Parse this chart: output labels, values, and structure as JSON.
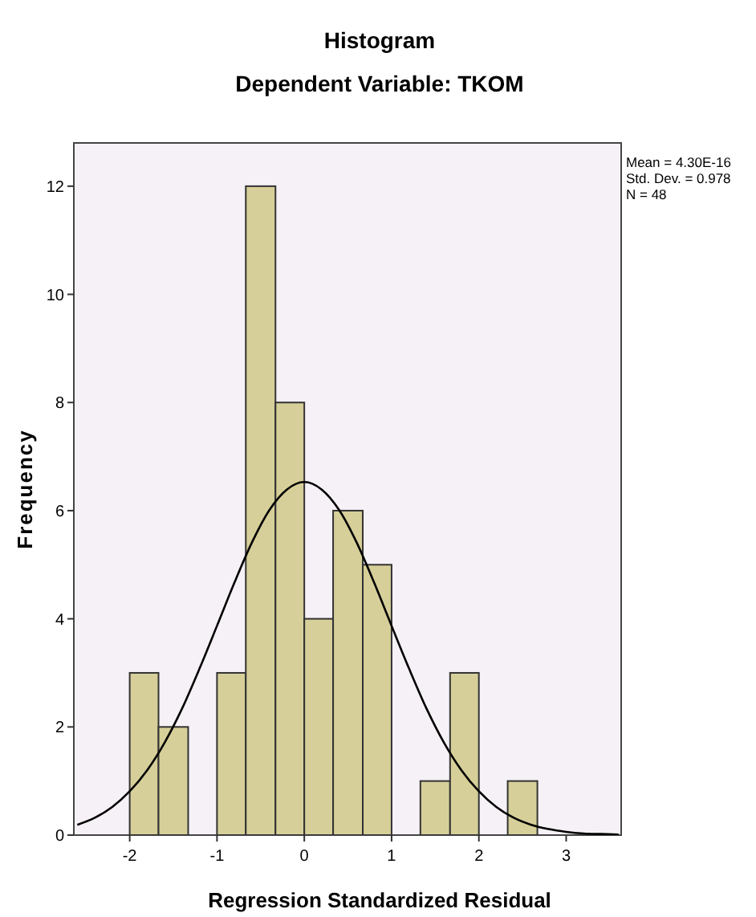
{
  "chart_data": {
    "type": "histogram",
    "title": "Histogram",
    "subtitle": "Dependent Variable: TKOM",
    "xlabel": "Regression Standardized Residual",
    "ylabel": "Frequency",
    "annotations": [
      "Mean = 4.30E-16",
      "Std. Dev. = 0.978",
      "N = 48"
    ],
    "xlim": [
      -2.64,
      3.63
    ],
    "ylim": [
      0,
      12.8
    ],
    "xticks": [
      -2,
      -1,
      0,
      1,
      2,
      3
    ],
    "yticks": [
      0,
      2,
      4,
      6,
      8,
      10,
      12
    ],
    "series": [
      {
        "type": "histogram",
        "color": "#d6cf99",
        "bins": [
          -2,
          -1.67,
          -1.33,
          -1,
          -0.67,
          -0.33,
          0,
          0.33,
          0.67,
          1,
          1.33,
          1.67,
          2,
          2.33,
          2.67
        ],
        "values": [
          3,
          2,
          0,
          3,
          12,
          8,
          4,
          6,
          5,
          0,
          1,
          3,
          0,
          1
        ]
      },
      {
        "type": "line",
        "color": "#000000",
        "x": [
          -2.6,
          -2.4,
          -2.2,
          -2,
          -1.8,
          -1.6,
          -1.4,
          -1.2,
          -1,
          -0.8,
          -0.6,
          -0.4,
          -0.2,
          0,
          0.2,
          0.4,
          0.6,
          0.8,
          1,
          1.2,
          1.4,
          1.6,
          1.8,
          2,
          2.2,
          2.4,
          2.6,
          2.8,
          3,
          3.2,
          3.4,
          3.6
        ],
        "values": [
          0.19,
          0.32,
          0.52,
          0.81,
          1.2,
          1.71,
          2.34,
          3.08,
          3.87,
          4.67,
          5.41,
          6.01,
          6.39,
          6.53,
          6.39,
          6.01,
          5.41,
          4.67,
          3.87,
          3.08,
          2.34,
          1.71,
          1.2,
          0.81,
          0.52,
          0.32,
          0.19,
          0.11,
          0.06,
          0.03,
          0.02,
          0.01
        ]
      }
    ]
  }
}
